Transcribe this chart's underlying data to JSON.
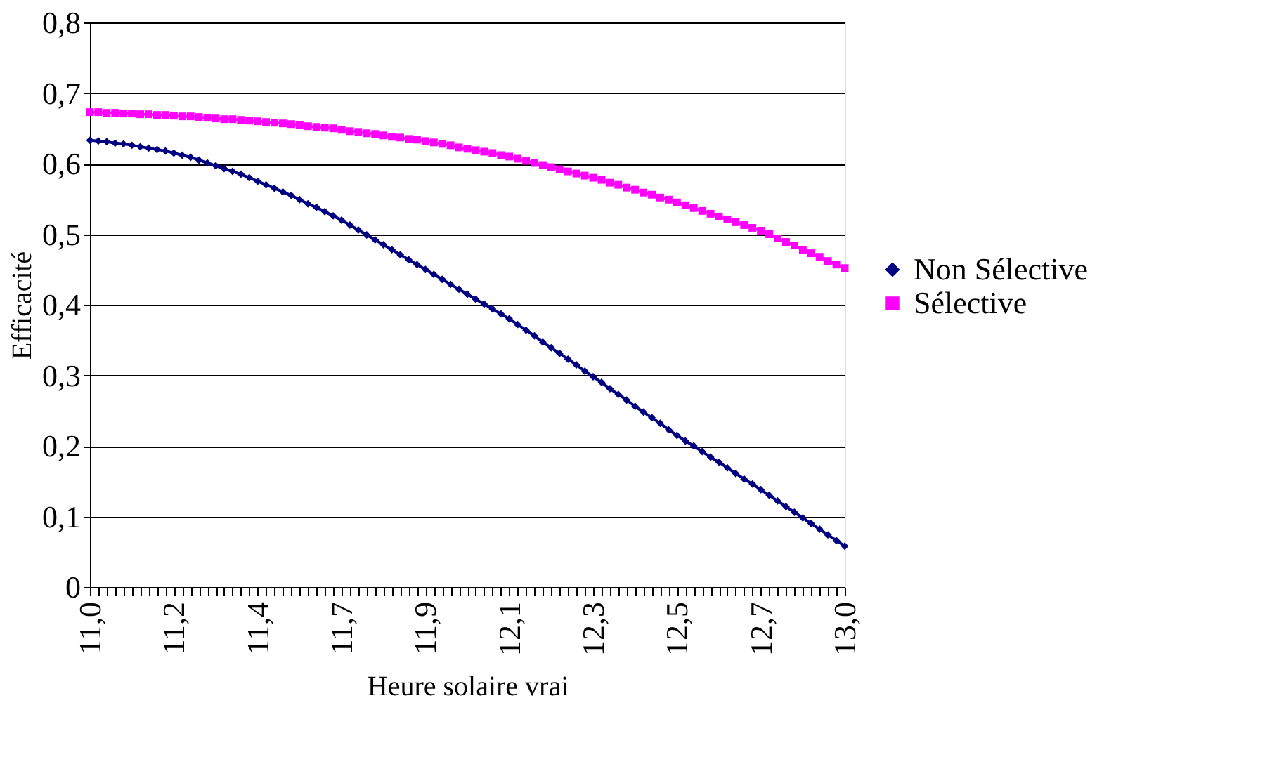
{
  "chart_data": {
    "type": "line",
    "xlabel": "Heure solaire vrai",
    "ylabel": "Efficacité",
    "categories": [
      "11,0",
      null,
      null,
      null,
      null,
      null,
      null,
      null,
      null,
      null,
      "11,2",
      null,
      null,
      null,
      null,
      null,
      null,
      null,
      null,
      null,
      "11,4",
      null,
      null,
      null,
      null,
      null,
      null,
      null,
      null,
      null,
      "11,7",
      null,
      null,
      null,
      null,
      null,
      null,
      null,
      null,
      null,
      "11,9",
      null,
      null,
      null,
      null,
      null,
      null,
      null,
      null,
      null,
      "12,1",
      null,
      null,
      null,
      null,
      null,
      null,
      null,
      null,
      null,
      "12,3",
      null,
      null,
      null,
      null,
      null,
      null,
      null,
      null,
      null,
      "12,5",
      null,
      null,
      null,
      null,
      null,
      null,
      null,
      null,
      null,
      "12,7",
      null,
      null,
      null,
      null,
      null,
      null,
      null,
      null,
      null,
      "13,0"
    ],
    "series": [
      {
        "name": "Non Sélective",
        "color": "#000080",
        "marker": "diamond",
        "values": [
          0.633,
          0.632,
          0.631,
          0.629,
          0.628,
          0.626,
          0.624,
          0.622,
          0.62,
          0.618,
          0.615,
          0.612,
          0.609,
          0.605,
          0.601,
          0.597,
          0.593,
          0.589,
          0.585,
          0.58,
          0.575,
          0.57,
          0.565,
          0.56,
          0.555,
          0.549,
          0.543,
          0.538,
          0.532,
          0.526,
          0.52,
          0.513,
          0.506,
          0.499,
          0.492,
          0.485,
          0.478,
          0.471,
          0.464,
          0.457,
          0.45,
          0.443,
          0.436,
          0.429,
          0.422,
          0.415,
          0.408,
          0.401,
          0.394,
          0.387,
          0.38,
          0.372,
          0.364,
          0.356,
          0.347,
          0.339,
          0.331,
          0.323,
          0.315,
          0.306,
          0.298,
          0.29,
          0.281,
          0.273,
          0.265,
          0.256,
          0.248,
          0.24,
          0.232,
          0.223,
          0.215,
          0.207,
          0.2,
          0.192,
          0.184,
          0.177,
          0.169,
          0.161,
          0.153,
          0.146,
          0.138,
          0.13,
          0.122,
          0.114,
          0.106,
          0.098,
          0.09,
          0.082,
          0.074,
          0.066,
          0.058
        ]
      },
      {
        "name": "Sélective",
        "color": "#ff00ff",
        "marker": "square",
        "values": [
          0.673,
          0.673,
          0.672,
          0.672,
          0.671,
          0.671,
          0.67,
          0.67,
          0.669,
          0.669,
          0.668,
          0.667,
          0.667,
          0.666,
          0.665,
          0.664,
          0.663,
          0.663,
          0.662,
          0.661,
          0.66,
          0.659,
          0.658,
          0.657,
          0.656,
          0.655,
          0.653,
          0.652,
          0.651,
          0.65,
          0.648,
          0.646,
          0.645,
          0.643,
          0.642,
          0.64,
          0.638,
          0.637,
          0.635,
          0.634,
          0.632,
          0.63,
          0.628,
          0.626,
          0.623,
          0.621,
          0.619,
          0.617,
          0.615,
          0.612,
          0.61,
          0.607,
          0.604,
          0.601,
          0.598,
          0.595,
          0.592,
          0.589,
          0.586,
          0.583,
          0.58,
          0.577,
          0.573,
          0.57,
          0.566,
          0.563,
          0.559,
          0.556,
          0.552,
          0.549,
          0.545,
          0.541,
          0.537,
          0.533,
          0.529,
          0.525,
          0.521,
          0.517,
          0.513,
          0.509,
          0.505,
          0.5,
          0.494,
          0.489,
          0.484,
          0.478,
          0.473,
          0.468,
          0.462,
          0.457,
          0.452
        ]
      }
    ],
    "ylim": [
      0,
      0.8
    ],
    "yticks": [
      0,
      {
        "value": 0.1,
        "label": "0,1"
      },
      {
        "value": 0.2,
        "label": "0,2"
      },
      {
        "value": 0.3,
        "label": "0,3"
      },
      {
        "value": 0.4,
        "label": "0,4"
      },
      {
        "value": 0.5,
        "label": "0,5"
      },
      {
        "value": 0.6,
        "label": "0,6"
      },
      {
        "value": 0.7,
        "label": "0,7"
      },
      {
        "value": 0.8,
        "label": "0,8"
      }
    ],
    "grid": "y",
    "legend": "right",
    "line_style": "solid"
  }
}
